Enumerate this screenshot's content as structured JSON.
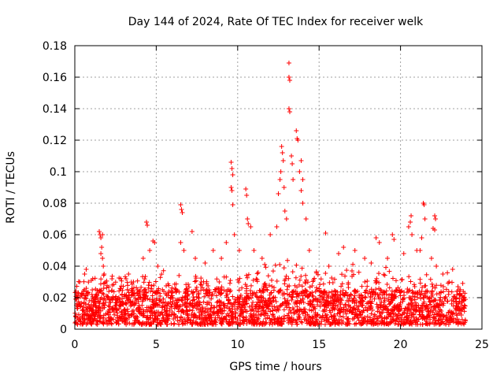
{
  "chart_data": {
    "type": "scatter",
    "title": "Day 144 of 2024, Rate Of TEC Index for receiver welk",
    "xlabel": "GPS time / hours",
    "ylabel": "ROTI / TECUs",
    "xlim": [
      0,
      25
    ],
    "ylim": [
      0,
      0.18
    ],
    "xticks": [
      0,
      5,
      10,
      15,
      20,
      25
    ],
    "xtick_labels": [
      "0",
      "5",
      "10",
      "15",
      "20",
      "25"
    ],
    "yticks": [
      0,
      0.02,
      0.04,
      0.06,
      0.08,
      0.1,
      0.12,
      0.14,
      0.16,
      0.18
    ],
    "ytick_labels": [
      "0",
      "0.02",
      "0.04",
      "0.06",
      "0.08",
      "0.1",
      "0.12",
      "0.14",
      "0.16",
      "0.18"
    ],
    "grid": true,
    "marker": "+",
    "series_color": "#ff0000",
    "data_range_hours": [
      0,
      24
    ],
    "baseline_band": [
      0.003,
      0.025
    ],
    "series": [
      {
        "name": "ROTI",
        "notable_points": [
          {
            "x": 0.3,
            "y": 0.03
          },
          {
            "x": 0.6,
            "y": 0.035
          },
          {
            "x": 0.7,
            "y": 0.038
          },
          {
            "x": 1.1,
            "y": 0.032
          },
          {
            "x": 1.5,
            "y": 0.062
          },
          {
            "x": 1.55,
            "y": 0.06
          },
          {
            "x": 1.6,
            "y": 0.058
          },
          {
            "x": 1.65,
            "y": 0.052
          },
          {
            "x": 1.7,
            "y": 0.06
          },
          {
            "x": 1.6,
            "y": 0.048
          },
          {
            "x": 1.7,
            "y": 0.045
          },
          {
            "x": 1.75,
            "y": 0.04
          },
          {
            "x": 1.8,
            "y": 0.035
          },
          {
            "x": 2.3,
            "y": 0.028
          },
          {
            "x": 3.3,
            "y": 0.035
          },
          {
            "x": 3.6,
            "y": 0.03
          },
          {
            "x": 4.2,
            "y": 0.045
          },
          {
            "x": 4.4,
            "y": 0.068
          },
          {
            "x": 4.45,
            "y": 0.066
          },
          {
            "x": 4.6,
            "y": 0.05
          },
          {
            "x": 4.8,
            "y": 0.056
          },
          {
            "x": 4.9,
            "y": 0.055
          },
          {
            "x": 5.1,
            "y": 0.04
          },
          {
            "x": 6.5,
            "y": 0.079
          },
          {
            "x": 6.55,
            "y": 0.076
          },
          {
            "x": 6.6,
            "y": 0.074
          },
          {
            "x": 6.5,
            "y": 0.055
          },
          {
            "x": 6.7,
            "y": 0.05
          },
          {
            "x": 7.2,
            "y": 0.062
          },
          {
            "x": 7.4,
            "y": 0.045
          },
          {
            "x": 8.0,
            "y": 0.042
          },
          {
            "x": 8.5,
            "y": 0.05
          },
          {
            "x": 9.0,
            "y": 0.045
          },
          {
            "x": 9.3,
            "y": 0.055
          },
          {
            "x": 9.6,
            "y": 0.106
          },
          {
            "x": 9.65,
            "y": 0.102
          },
          {
            "x": 9.7,
            "y": 0.098
          },
          {
            "x": 9.6,
            "y": 0.09
          },
          {
            "x": 9.65,
            "y": 0.088
          },
          {
            "x": 9.7,
            "y": 0.079
          },
          {
            "x": 9.8,
            "y": 0.06
          },
          {
            "x": 10.1,
            "y": 0.05
          },
          {
            "x": 10.5,
            "y": 0.089
          },
          {
            "x": 10.55,
            "y": 0.085
          },
          {
            "x": 10.6,
            "y": 0.07
          },
          {
            "x": 10.65,
            "y": 0.067
          },
          {
            "x": 10.8,
            "y": 0.065
          },
          {
            "x": 11.0,
            "y": 0.05
          },
          {
            "x": 11.5,
            "y": 0.045
          },
          {
            "x": 12.0,
            "y": 0.06
          },
          {
            "x": 12.4,
            "y": 0.065
          },
          {
            "x": 12.5,
            "y": 0.086
          },
          {
            "x": 12.6,
            "y": 0.095
          },
          {
            "x": 12.65,
            "y": 0.1
          },
          {
            "x": 12.7,
            "y": 0.116
          },
          {
            "x": 12.75,
            "y": 0.112
          },
          {
            "x": 12.8,
            "y": 0.107
          },
          {
            "x": 12.85,
            "y": 0.09
          },
          {
            "x": 12.9,
            "y": 0.075
          },
          {
            "x": 13.0,
            "y": 0.07
          },
          {
            "x": 13.15,
            "y": 0.169
          },
          {
            "x": 13.15,
            "y": 0.16
          },
          {
            "x": 13.2,
            "y": 0.158
          },
          {
            "x": 13.15,
            "y": 0.14
          },
          {
            "x": 13.2,
            "y": 0.138
          },
          {
            "x": 13.3,
            "y": 0.11
          },
          {
            "x": 13.35,
            "y": 0.105
          },
          {
            "x": 13.4,
            "y": 0.095
          },
          {
            "x": 13.6,
            "y": 0.126
          },
          {
            "x": 13.65,
            "y": 0.121
          },
          {
            "x": 13.7,
            "y": 0.12
          },
          {
            "x": 13.8,
            "y": 0.1
          },
          {
            "x": 13.9,
            "y": 0.107
          },
          {
            "x": 14.0,
            "y": 0.095
          },
          {
            "x": 13.9,
            "y": 0.088
          },
          {
            "x": 14.0,
            "y": 0.08
          },
          {
            "x": 14.2,
            "y": 0.07
          },
          {
            "x": 14.4,
            "y": 0.05
          },
          {
            "x": 15.4,
            "y": 0.061
          },
          {
            "x": 15.6,
            "y": 0.04
          },
          {
            "x": 16.2,
            "y": 0.048
          },
          {
            "x": 16.5,
            "y": 0.052
          },
          {
            "x": 17.2,
            "y": 0.05
          },
          {
            "x": 17.8,
            "y": 0.045
          },
          {
            "x": 18.2,
            "y": 0.042
          },
          {
            "x": 18.5,
            "y": 0.058
          },
          {
            "x": 18.7,
            "y": 0.055
          },
          {
            "x": 19.2,
            "y": 0.045
          },
          {
            "x": 19.5,
            "y": 0.06
          },
          {
            "x": 19.6,
            "y": 0.057
          },
          {
            "x": 20.2,
            "y": 0.048
          },
          {
            "x": 20.5,
            "y": 0.065
          },
          {
            "x": 20.65,
            "y": 0.072
          },
          {
            "x": 20.6,
            "y": 0.068
          },
          {
            "x": 20.7,
            "y": 0.06
          },
          {
            "x": 21.0,
            "y": 0.05
          },
          {
            "x": 21.3,
            "y": 0.058
          },
          {
            "x": 21.4,
            "y": 0.08
          },
          {
            "x": 21.45,
            "y": 0.079
          },
          {
            "x": 21.5,
            "y": 0.07
          },
          {
            "x": 21.2,
            "y": 0.05
          },
          {
            "x": 21.9,
            "y": 0.045
          },
          {
            "x": 22.1,
            "y": 0.072
          },
          {
            "x": 22.15,
            "y": 0.07
          },
          {
            "x": 22.0,
            "y": 0.064
          },
          {
            "x": 22.1,
            "y": 0.063
          },
          {
            "x": 22.2,
            "y": 0.04
          },
          {
            "x": 22.6,
            "y": 0.035
          },
          {
            "x": 23.2,
            "y": 0.038
          },
          {
            "x": 23.6,
            "y": 0.025
          }
        ]
      }
    ]
  }
}
